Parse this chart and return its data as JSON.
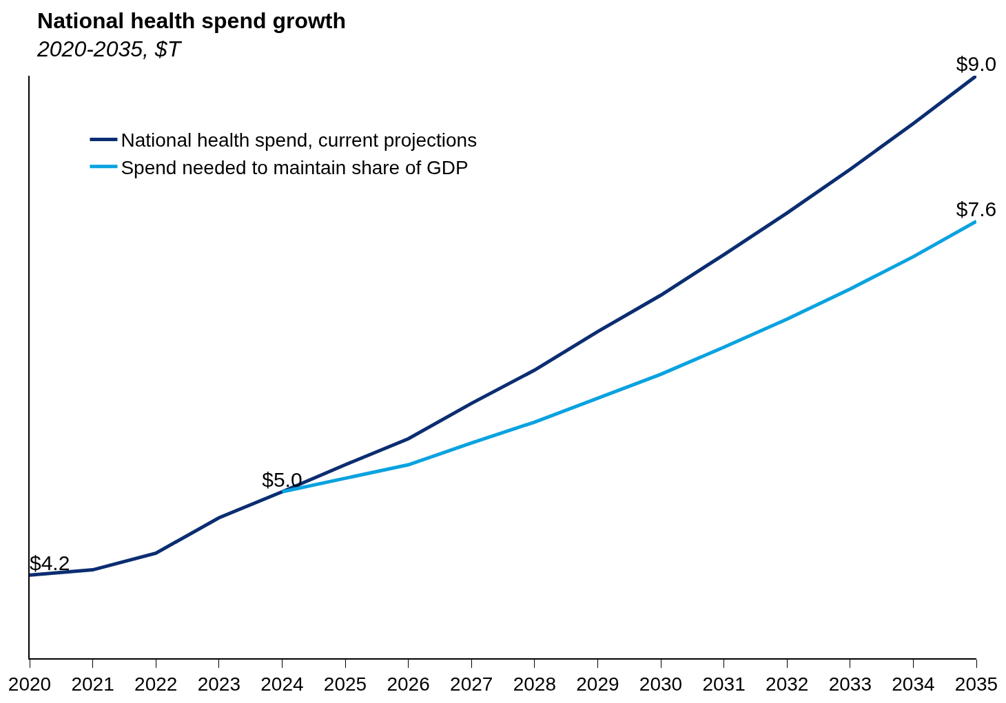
{
  "chart_data": {
    "type": "line",
    "title": "National health spend growth",
    "subtitle": "2020-2035, $T",
    "x": [
      2020,
      2021,
      2022,
      2023,
      2024,
      2025,
      2026,
      2027,
      2028,
      2029,
      2030,
      2031,
      2032,
      2033,
      2034,
      2035
    ],
    "xlim": [
      2020,
      2035
    ],
    "xticks": [
      2020,
      2021,
      2022,
      2023,
      2024,
      2025,
      2026,
      2027,
      2028,
      2029,
      2030,
      2031,
      2032,
      2033,
      2034,
      2035
    ],
    "ylim": [
      3.4,
      9.0
    ],
    "tick_labels": "x",
    "legend": "top left",
    "marker": "none",
    "line_style": "solid",
    "series": [
      {
        "name": "National health spend, current projections",
        "color": "#0b2d71",
        "values": [
          4.2,
          4.25,
          4.41,
          4.75,
          5.0,
          5.26,
          5.51,
          5.85,
          6.17,
          6.54,
          6.89,
          7.28,
          7.68,
          8.1,
          8.54,
          9.0
        ],
        "value_labels": [
          "$4.2",
          null,
          null,
          null,
          "$5.0",
          null,
          null,
          null,
          null,
          null,
          null,
          null,
          null,
          null,
          null,
          "$9.0"
        ]
      },
      {
        "name": "Spend needed to maintain share of GDP",
        "color": "#0aa2e0",
        "values": [
          null,
          null,
          null,
          null,
          5.0,
          5.13,
          5.26,
          5.47,
          5.67,
          5.9,
          6.13,
          6.39,
          6.66,
          6.95,
          7.26,
          7.6
        ],
        "value_labels": [
          null,
          null,
          null,
          null,
          null,
          null,
          null,
          null,
          null,
          null,
          null,
          null,
          null,
          null,
          null,
          "$7.6"
        ]
      }
    ]
  }
}
